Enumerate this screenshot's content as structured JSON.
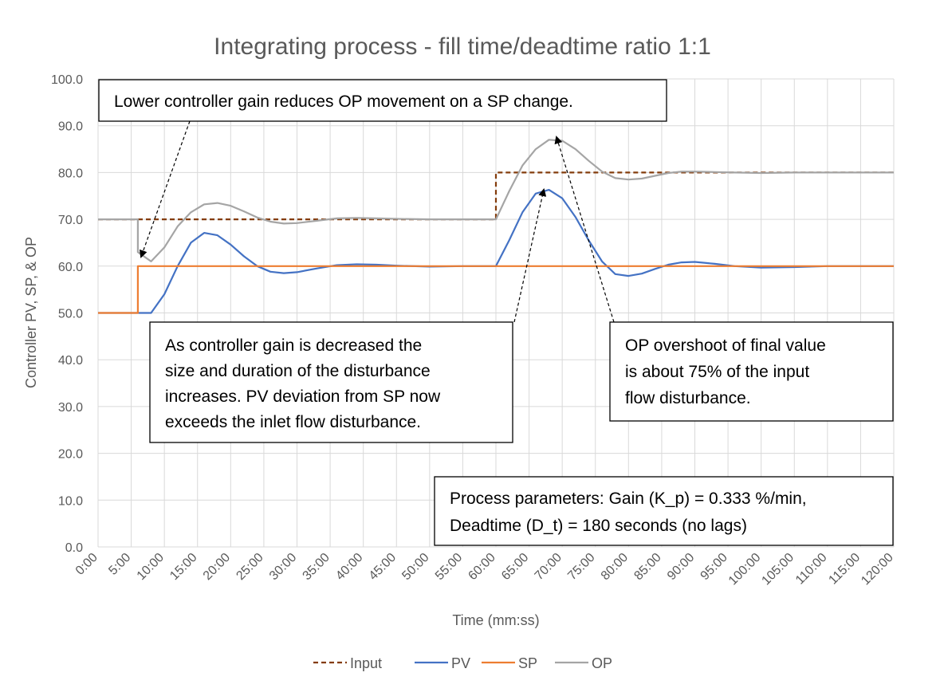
{
  "chart_data": {
    "type": "line",
    "title": "Integrating process - fill time/deadtime ratio 1:1",
    "xlabel": "Time (mm:ss)",
    "ylabel": "Controller PV, SP, & OP",
    "xlim": [
      0,
      120
    ],
    "ylim": [
      0,
      100
    ],
    "y_ticks": [
      0,
      10,
      20,
      30,
      40,
      50,
      60,
      70,
      80,
      90,
      100
    ],
    "y_tick_labels": [
      "0.0",
      "10.0",
      "20.0",
      "30.0",
      "40.0",
      "50.0",
      "60.0",
      "70.0",
      "80.0",
      "90.0",
      "100.0"
    ],
    "x_ticks": [
      0,
      5,
      10,
      15,
      20,
      25,
      30,
      35,
      40,
      45,
      50,
      55,
      60,
      65,
      70,
      75,
      80,
      85,
      90,
      95,
      100,
      105,
      110,
      115,
      120
    ],
    "x_tick_labels": [
      "0:00",
      "5:00",
      "10:00",
      "15:00",
      "20:00",
      "25:00",
      "30:00",
      "35:00",
      "40:00",
      "45:00",
      "50:00",
      "55:00",
      "60:00",
      "65:00",
      "70:00",
      "75:00",
      "80:00",
      "85:00",
      "90:00",
      "95:00",
      "100:00",
      "105:00",
      "110:00",
      "115:00",
      "120:00"
    ],
    "grid": true,
    "legend_position": "bottom",
    "series": [
      {
        "name": "Input",
        "color": "#843c0c",
        "dash": "dashed",
        "x": [
          0,
          60,
          60,
          120
        ],
        "y": [
          70,
          70,
          80,
          80
        ]
      },
      {
        "name": "PV",
        "color": "#4472c4",
        "dash": "solid",
        "x": [
          0,
          8,
          10,
          12,
          14,
          16,
          18,
          20,
          22,
          24,
          26,
          28,
          30,
          33,
          36,
          39,
          42,
          45,
          50,
          55,
          60,
          62,
          64,
          66,
          68,
          70,
          72,
          74,
          76,
          78,
          80,
          82,
          84,
          86,
          88,
          90,
          93,
          96,
          100,
          105,
          110,
          115,
          120
        ],
        "y": [
          50,
          50,
          54,
          60,
          65,
          67.1,
          66.6,
          64.6,
          62.1,
          60,
          58.8,
          58.5,
          58.7,
          59.5,
          60.2,
          60.4,
          60.3,
          60.1,
          59.9,
          60,
          60,
          65.5,
          71.5,
          75.5,
          76.3,
          74.5,
          70.5,
          65.5,
          61,
          58.3,
          57.9,
          58.4,
          59.4,
          60.3,
          60.8,
          60.9,
          60.5,
          60,
          59.7,
          59.8,
          60,
          60,
          60
        ]
      },
      {
        "name": "SP",
        "color": "#ed7d31",
        "dash": "solid",
        "x": [
          0,
          6,
          6,
          120
        ],
        "y": [
          50,
          50,
          60,
          60
        ]
      },
      {
        "name": "OP",
        "color": "#a5a5a5",
        "dash": "solid",
        "x": [
          0,
          6,
          6,
          8,
          10,
          12,
          14,
          16,
          18,
          20,
          22,
          24,
          26,
          28,
          30,
          33,
          36,
          39,
          42,
          45,
          50,
          55,
          60,
          62,
          64,
          66,
          68,
          70,
          72,
          74,
          76,
          78,
          80,
          82,
          84,
          86,
          88,
          90,
          93,
          96,
          100,
          105,
          110,
          115,
          120
        ],
        "y": [
          70,
          70,
          63,
          61,
          64,
          68.5,
          71.5,
          73.2,
          73.5,
          72.9,
          71.7,
          70.4,
          69.5,
          69.1,
          69.2,
          69.7,
          70.2,
          70.3,
          70.2,
          70.1,
          70,
          70,
          70,
          76,
          81.5,
          85,
          87,
          86.8,
          85,
          82.5,
          80.2,
          78.8,
          78.5,
          78.7,
          79.3,
          79.9,
          80.2,
          80.2,
          80.1,
          80,
          79.9,
          80,
          80,
          80,
          80
        ]
      }
    ],
    "annotations": [
      {
        "id": "gain-note",
        "lines": [
          "Lower controller gain reduces OP movement on a SP change."
        ]
      },
      {
        "id": "disturbance-note",
        "lines": [
          "As controller gain is decreased the",
          "size and duration of the disturbance",
          "increases.  PV deviation from SP now",
          "exceeds the inlet flow disturbance."
        ]
      },
      {
        "id": "overshoot-note",
        "lines": [
          "OP overshoot of final value",
          "is about 75% of the input",
          "flow disturbance."
        ]
      },
      {
        "id": "params-note",
        "lines": [
          "Process parameters:  Gain (K_p) = 0.333 %/min,",
          "Deadtime (D_t) = 180 seconds  (no lags)"
        ]
      }
    ]
  }
}
